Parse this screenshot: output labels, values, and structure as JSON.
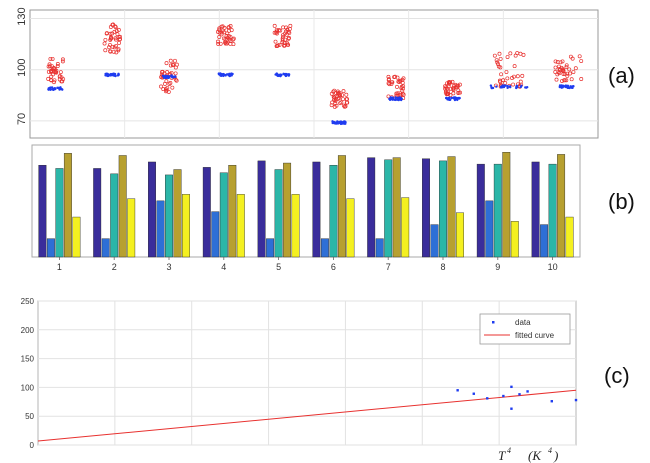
{
  "panel_labels": {
    "a": "(a)",
    "b": "(b)",
    "c": "(c)"
  },
  "chart_data": [
    {
      "panel": "a",
      "type": "scatter",
      "ylim": [
        60,
        135
      ],
      "yticks": [
        "70",
        "100",
        "130"
      ],
      "grid": true,
      "groups": [
        {
          "x": 1,
          "red_range": [
            92,
            107
          ],
          "blue_level": 89
        },
        {
          "x": 2,
          "red_range": [
            110,
            127
          ],
          "blue_level": 97
        },
        {
          "x": 3,
          "red_range": [
            87,
            106
          ],
          "blue_level": 96
        },
        {
          "x": 4,
          "red_range": [
            115,
            126
          ],
          "blue_level": 97
        },
        {
          "x": 5,
          "red_range": [
            113,
            126
          ],
          "blue_level": 97
        },
        {
          "x": 6,
          "red_range": [
            78,
            88
          ],
          "blue_level": 69
        },
        {
          "x": 7,
          "red_range": [
            83,
            96
          ],
          "blue_level": 83
        },
        {
          "x": 8,
          "red_range": [
            85,
            93
          ],
          "blue_level": 83
        },
        {
          "x": 9,
          "red_range": [
            90,
            110
          ],
          "blue_level": 90
        },
        {
          "x": 10,
          "red_range": [
            92,
            108
          ],
          "blue_level": 90
        }
      ],
      "series_colors": {
        "red": "#e8312f",
        "blue": "#1f3cf0"
      }
    },
    {
      "panel": "b",
      "type": "bar",
      "categories": [
        "1",
        "2",
        "3",
        "4",
        "5",
        "6",
        "7",
        "8",
        "9",
        "10"
      ],
      "ylim": [
        0,
        1
      ],
      "series": [
        {
          "color": "#3a2d9b",
          "values": [
            0.85,
            0.82,
            0.88,
            0.83,
            0.89,
            0.88,
            0.92,
            0.91,
            0.86,
            0.88
          ]
        },
        {
          "color": "#2e6fd6",
          "values": [
            0.17,
            0.17,
            0.52,
            0.42,
            0.17,
            0.17,
            0.17,
            0.3,
            0.52,
            0.3
          ]
        },
        {
          "color": "#2bb6a8",
          "values": [
            0.82,
            0.77,
            0.76,
            0.78,
            0.81,
            0.85,
            0.9,
            0.89,
            0.86,
            0.86
          ]
        },
        {
          "color": "#b7a030",
          "values": [
            0.96,
            0.94,
            0.81,
            0.85,
            0.87,
            0.94,
            0.92,
            0.93,
            0.97,
            0.95
          ]
        },
        {
          "color": "#f4f020",
          "values": [
            0.37,
            0.54,
            0.58,
            0.58,
            0.58,
            0.54,
            0.55,
            0.41,
            0.33,
            0.37
          ]
        }
      ]
    },
    {
      "panel": "c",
      "type": "scatter",
      "ylim": [
        0,
        250
      ],
      "yticks": [
        "0",
        "50",
        "100",
        "150",
        "200",
        "250"
      ],
      "xlabel_main": "T",
      "xlabel_main_sup": "4",
      "xlabel_unit": "(K",
      "xlabel_unit_sup": "4",
      "xlabel_unit_close": ")",
      "legend": {
        "placement": "top-right",
        "items": [
          "data",
          "fitted curve"
        ]
      },
      "points": [
        [
          0.78,
          95
        ],
        [
          0.81,
          89
        ],
        [
          0.835,
          81
        ],
        [
          0.865,
          85
        ],
        [
          0.88,
          101
        ],
        [
          0.88,
          63
        ],
        [
          0.895,
          88
        ],
        [
          0.91,
          93
        ],
        [
          0.955,
          76
        ],
        [
          1.0,
          78
        ]
      ],
      "fit_line": [
        [
          0.0,
          7
        ],
        [
          1.0,
          95
        ]
      ],
      "colors": {
        "points": "#1f3cf0",
        "fit": "#e8312f"
      }
    }
  ]
}
